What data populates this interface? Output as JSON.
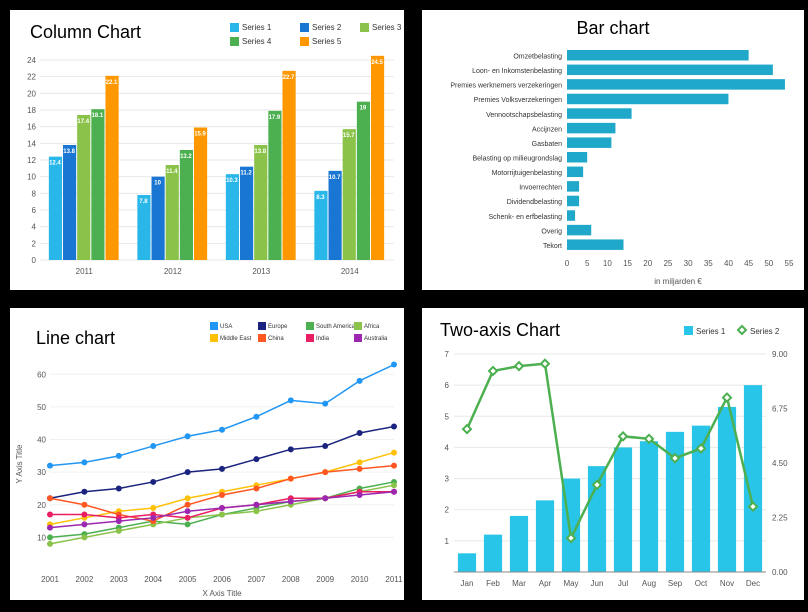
{
  "column_chart": {
    "type": "grouped-bar",
    "title": "Column Chart",
    "title_fontsize": 18,
    "background": "#ffffff",
    "grid_color": "#e8e8e8",
    "categories": [
      "2011",
      "2012",
      "2013",
      "2014"
    ],
    "series": [
      {
        "name": "Series 1",
        "color": "#29b6e8",
        "values": [
          12.4,
          7.8,
          10.3,
          8.3
        ]
      },
      {
        "name": "Series 2",
        "color": "#1976d2",
        "values": [
          13.8,
          10,
          11.2,
          10.7
        ]
      },
      {
        "name": "Series 3",
        "color": "#8bc34a",
        "values": [
          17.4,
          11.4,
          13.8,
          15.7
        ]
      },
      {
        "name": "Series 4",
        "color": "#4caf50",
        "values": [
          18.1,
          13.2,
          17.9,
          19
        ]
      },
      {
        "name": "Series 5",
        "color": "#ff9800",
        "values": [
          22.1,
          15.9,
          22.7,
          24.5
        ]
      }
    ],
    "ylim": [
      0,
      24
    ],
    "ytick_step": 2,
    "bar_width": 0.16
  },
  "bar_chart": {
    "type": "horizontal-bar",
    "title": "Bar chart",
    "background": "#ffffff",
    "bar_color": "#1fa8c9",
    "xlabel": "in miljarden €",
    "xlim": [
      0,
      55
    ],
    "xtick_step": 5,
    "items": [
      {
        "label": "Omzetbelasting",
        "value": 45
      },
      {
        "label": "Loon- en Inkomstenbelasting",
        "value": 51
      },
      {
        "label": "Premies werknemers verzekeringen",
        "value": 54
      },
      {
        "label": "Premies Volksverzekeringen",
        "value": 40
      },
      {
        "label": "Vennootschapsbelasting",
        "value": 16
      },
      {
        "label": "Accijnzen",
        "value": 12
      },
      {
        "label": "Gasbaten",
        "value": 11
      },
      {
        "label": "Belasting op milieugrondslag",
        "value": 5
      },
      {
        "label": "Motorrijtuigenbelasting",
        "value": 4
      },
      {
        "label": "Invoerrechten",
        "value": 3
      },
      {
        "label": "Dividendbelasting",
        "value": 3
      },
      {
        "label": "Schenk- en erfbelasting",
        "value": 2
      },
      {
        "label": "Overig",
        "value": 6
      },
      {
        "label": "Tekort",
        "value": 14
      }
    ]
  },
  "line_chart": {
    "type": "line",
    "title": "Line chart",
    "background": "#ffffff",
    "grid_color": "#f0f0f0",
    "xlabel": "X Axis Title",
    "ylabel": "Y Axis Title",
    "xvalues": [
      2001,
      2002,
      2003,
      2004,
      2005,
      2006,
      2007,
      2008,
      2009,
      2010,
      2011
    ],
    "ylim": [
      0,
      65
    ],
    "yticks": [
      10,
      20,
      30,
      40,
      50,
      60
    ],
    "marker_size": 3,
    "series": [
      {
        "name": "USA",
        "color": "#2196f3",
        "values": [
          32,
          33,
          35,
          38,
          41,
          43,
          47,
          52,
          51,
          58,
          63
        ]
      },
      {
        "name": "Europe",
        "color": "#1a237e",
        "values": [
          22,
          24,
          25,
          27,
          30,
          31,
          34,
          37,
          38,
          42,
          44
        ]
      },
      {
        "name": "South America",
        "color": "#4caf50",
        "values": [
          10,
          11,
          13,
          15,
          14,
          17,
          19,
          21,
          22,
          25,
          27
        ]
      },
      {
        "name": "Africa",
        "color": "#8bc34a",
        "values": [
          8,
          10,
          12,
          14,
          16,
          17,
          18,
          20,
          22,
          24,
          26
        ]
      },
      {
        "name": "Middle East",
        "color": "#ffc107",
        "values": [
          14,
          16,
          18,
          19,
          22,
          24,
          26,
          28,
          30,
          33,
          36
        ]
      },
      {
        "name": "China",
        "color": "#ff5722",
        "values": [
          22,
          20,
          17,
          15,
          20,
          23,
          25,
          28,
          30,
          31,
          32
        ]
      },
      {
        "name": "India",
        "color": "#e91e63",
        "values": [
          17,
          17,
          16,
          17,
          16,
          19,
          20,
          22,
          22,
          24,
          24
        ]
      },
      {
        "name": "Australia",
        "color": "#9c27b0",
        "values": [
          13,
          14,
          15,
          16,
          18,
          19,
          20,
          21,
          22,
          23,
          24
        ]
      }
    ]
  },
  "two_axis_chart": {
    "type": "combo",
    "title": "Two-axis Chart",
    "background": "#ffffff",
    "grid_color": "#e8e8e8",
    "categories": [
      "Jan",
      "Feb",
      "Mar",
      "Apr",
      "May",
      "Jun",
      "Jul",
      "Aug",
      "Sep",
      "Oct",
      "Nov",
      "Dec"
    ],
    "left_ylim": [
      0,
      7
    ],
    "left_yticks": [
      1,
      2,
      3,
      4,
      5,
      6,
      7
    ],
    "right_ylim": [
      0,
      9
    ],
    "right_yticks": [
      0.0,
      2.25,
      4.5,
      6.75,
      9.0
    ],
    "series1": {
      "name": "Series 1",
      "type": "bar",
      "color": "#29c5e8",
      "values": [
        0.6,
        1.2,
        1.8,
        2.3,
        3.0,
        3.4,
        4.0,
        4.2,
        4.5,
        4.7,
        5.3,
        6.0
      ]
    },
    "series2": {
      "name": "Series 2",
      "type": "line-diamond",
      "color": "#4caf50",
      "values": [
        5.9,
        8.3,
        8.5,
        8.6,
        1.4,
        3.6,
        5.6,
        5.5,
        4.7,
        5.1,
        7.2,
        2.7
      ]
    }
  }
}
